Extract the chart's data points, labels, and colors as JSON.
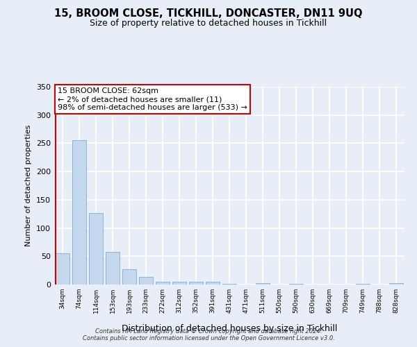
{
  "title": "15, BROOM CLOSE, TICKHILL, DONCASTER, DN11 9UQ",
  "subtitle": "Size of property relative to detached houses in Tickhill",
  "xlabel": "Distribution of detached houses by size in Tickhill",
  "ylabel": "Number of detached properties",
  "bar_labels": [
    "34sqm",
    "74sqm",
    "114sqm",
    "153sqm",
    "193sqm",
    "233sqm",
    "272sqm",
    "312sqm",
    "352sqm",
    "391sqm",
    "431sqm",
    "471sqm",
    "511sqm",
    "550sqm",
    "590sqm",
    "630sqm",
    "669sqm",
    "709sqm",
    "749sqm",
    "788sqm",
    "828sqm"
  ],
  "bar_values": [
    55,
    256,
    127,
    58,
    27,
    13,
    5,
    5,
    5,
    5,
    1,
    0,
    3,
    0,
    1,
    0,
    0,
    0,
    1,
    0,
    2
  ],
  "bar_color": "#c5d8ed",
  "bar_edge_color": "#7aafd4",
  "vline_color": "#cc0000",
  "vline_x": 0.5,
  "ylim": [
    0,
    350
  ],
  "yticks": [
    0,
    50,
    100,
    150,
    200,
    250,
    300,
    350
  ],
  "annotation_title": "15 BROOM CLOSE: 62sqm",
  "annotation_line1": "← 2% of detached houses are smaller (11)",
  "annotation_line2": "98% of semi-detached houses are larger (533) →",
  "annotation_box_color": "#ffffff",
  "annotation_box_edge": "#cc0000",
  "footer_line1": "Contains HM Land Registry data © Crown copyright and database right 2024.",
  "footer_line2": "Contains public sector information licensed under the Open Government Licence v3.0.",
  "bg_color": "#e8eef7",
  "grid_color": "#ffffff",
  "title_fontsize": 10.5,
  "subtitle_fontsize": 9
}
